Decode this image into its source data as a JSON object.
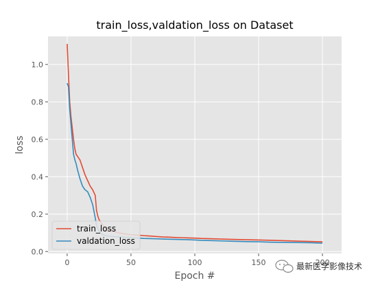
{
  "chart_data": {
    "type": "line",
    "title": "train_loss,valdation_loss on Dataset",
    "xlabel": "Epoch #",
    "ylabel": "loss",
    "xlim": [
      -15,
      215
    ],
    "ylim": [
      -0.01,
      1.15
    ],
    "xticks": [
      0,
      50,
      100,
      150,
      200
    ],
    "yticks": [
      0.0,
      0.2,
      0.4,
      0.6,
      0.8,
      1.0
    ],
    "grid": true,
    "legend_position": "bottom-left",
    "series": [
      {
        "name": "train_loss",
        "color": "#E24A33",
        "x": [
          0,
          1,
          2,
          3,
          4,
          5,
          6,
          7,
          8,
          10,
          12,
          14,
          16,
          18,
          20,
          22,
          23,
          24,
          25,
          26,
          28,
          30,
          35,
          40,
          45,
          50,
          55,
          60,
          65,
          70,
          75,
          80,
          85,
          90,
          95,
          100,
          105,
          110,
          120,
          130,
          140,
          150,
          160,
          170,
          180,
          190,
          200
        ],
        "y": [
          1.11,
          0.95,
          0.8,
          0.72,
          0.66,
          0.6,
          0.55,
          0.52,
          0.51,
          0.49,
          0.45,
          0.41,
          0.38,
          0.35,
          0.33,
          0.3,
          0.22,
          0.19,
          0.17,
          0.16,
          0.14,
          0.12,
          0.11,
          0.1,
          0.095,
          0.09,
          0.088,
          0.085,
          0.083,
          0.08,
          0.078,
          0.077,
          0.075,
          0.074,
          0.073,
          0.072,
          0.07,
          0.069,
          0.067,
          0.065,
          0.063,
          0.062,
          0.06,
          0.058,
          0.056,
          0.054,
          0.052
        ]
      },
      {
        "name": "valdation_loss",
        "color": "#348ABD",
        "x": [
          0,
          1,
          2,
          3,
          4,
          5,
          6,
          7,
          8,
          10,
          12,
          14,
          16,
          18,
          20,
          22,
          23,
          24,
          25,
          26,
          28,
          30,
          35,
          40,
          45,
          50,
          55,
          60,
          65,
          70,
          75,
          80,
          85,
          90,
          95,
          100,
          105,
          110,
          120,
          130,
          140,
          150,
          160,
          170,
          180,
          190,
          200
        ],
        "y": [
          0.9,
          0.88,
          0.76,
          0.68,
          0.6,
          0.52,
          0.49,
          0.47,
          0.44,
          0.39,
          0.35,
          0.33,
          0.32,
          0.29,
          0.25,
          0.18,
          0.14,
          0.12,
          0.11,
          0.1,
          0.09,
          0.085,
          0.08,
          0.078,
          0.076,
          0.074,
          0.072,
          0.07,
          0.069,
          0.068,
          0.067,
          0.066,
          0.065,
          0.064,
          0.063,
          0.062,
          0.06,
          0.059,
          0.057,
          0.055,
          0.053,
          0.052,
          0.05,
          0.049,
          0.048,
          0.047,
          0.045
        ]
      }
    ]
  },
  "watermark": {
    "text": "最新医学影像技术",
    "icon": "wechat-bubble-icon"
  }
}
